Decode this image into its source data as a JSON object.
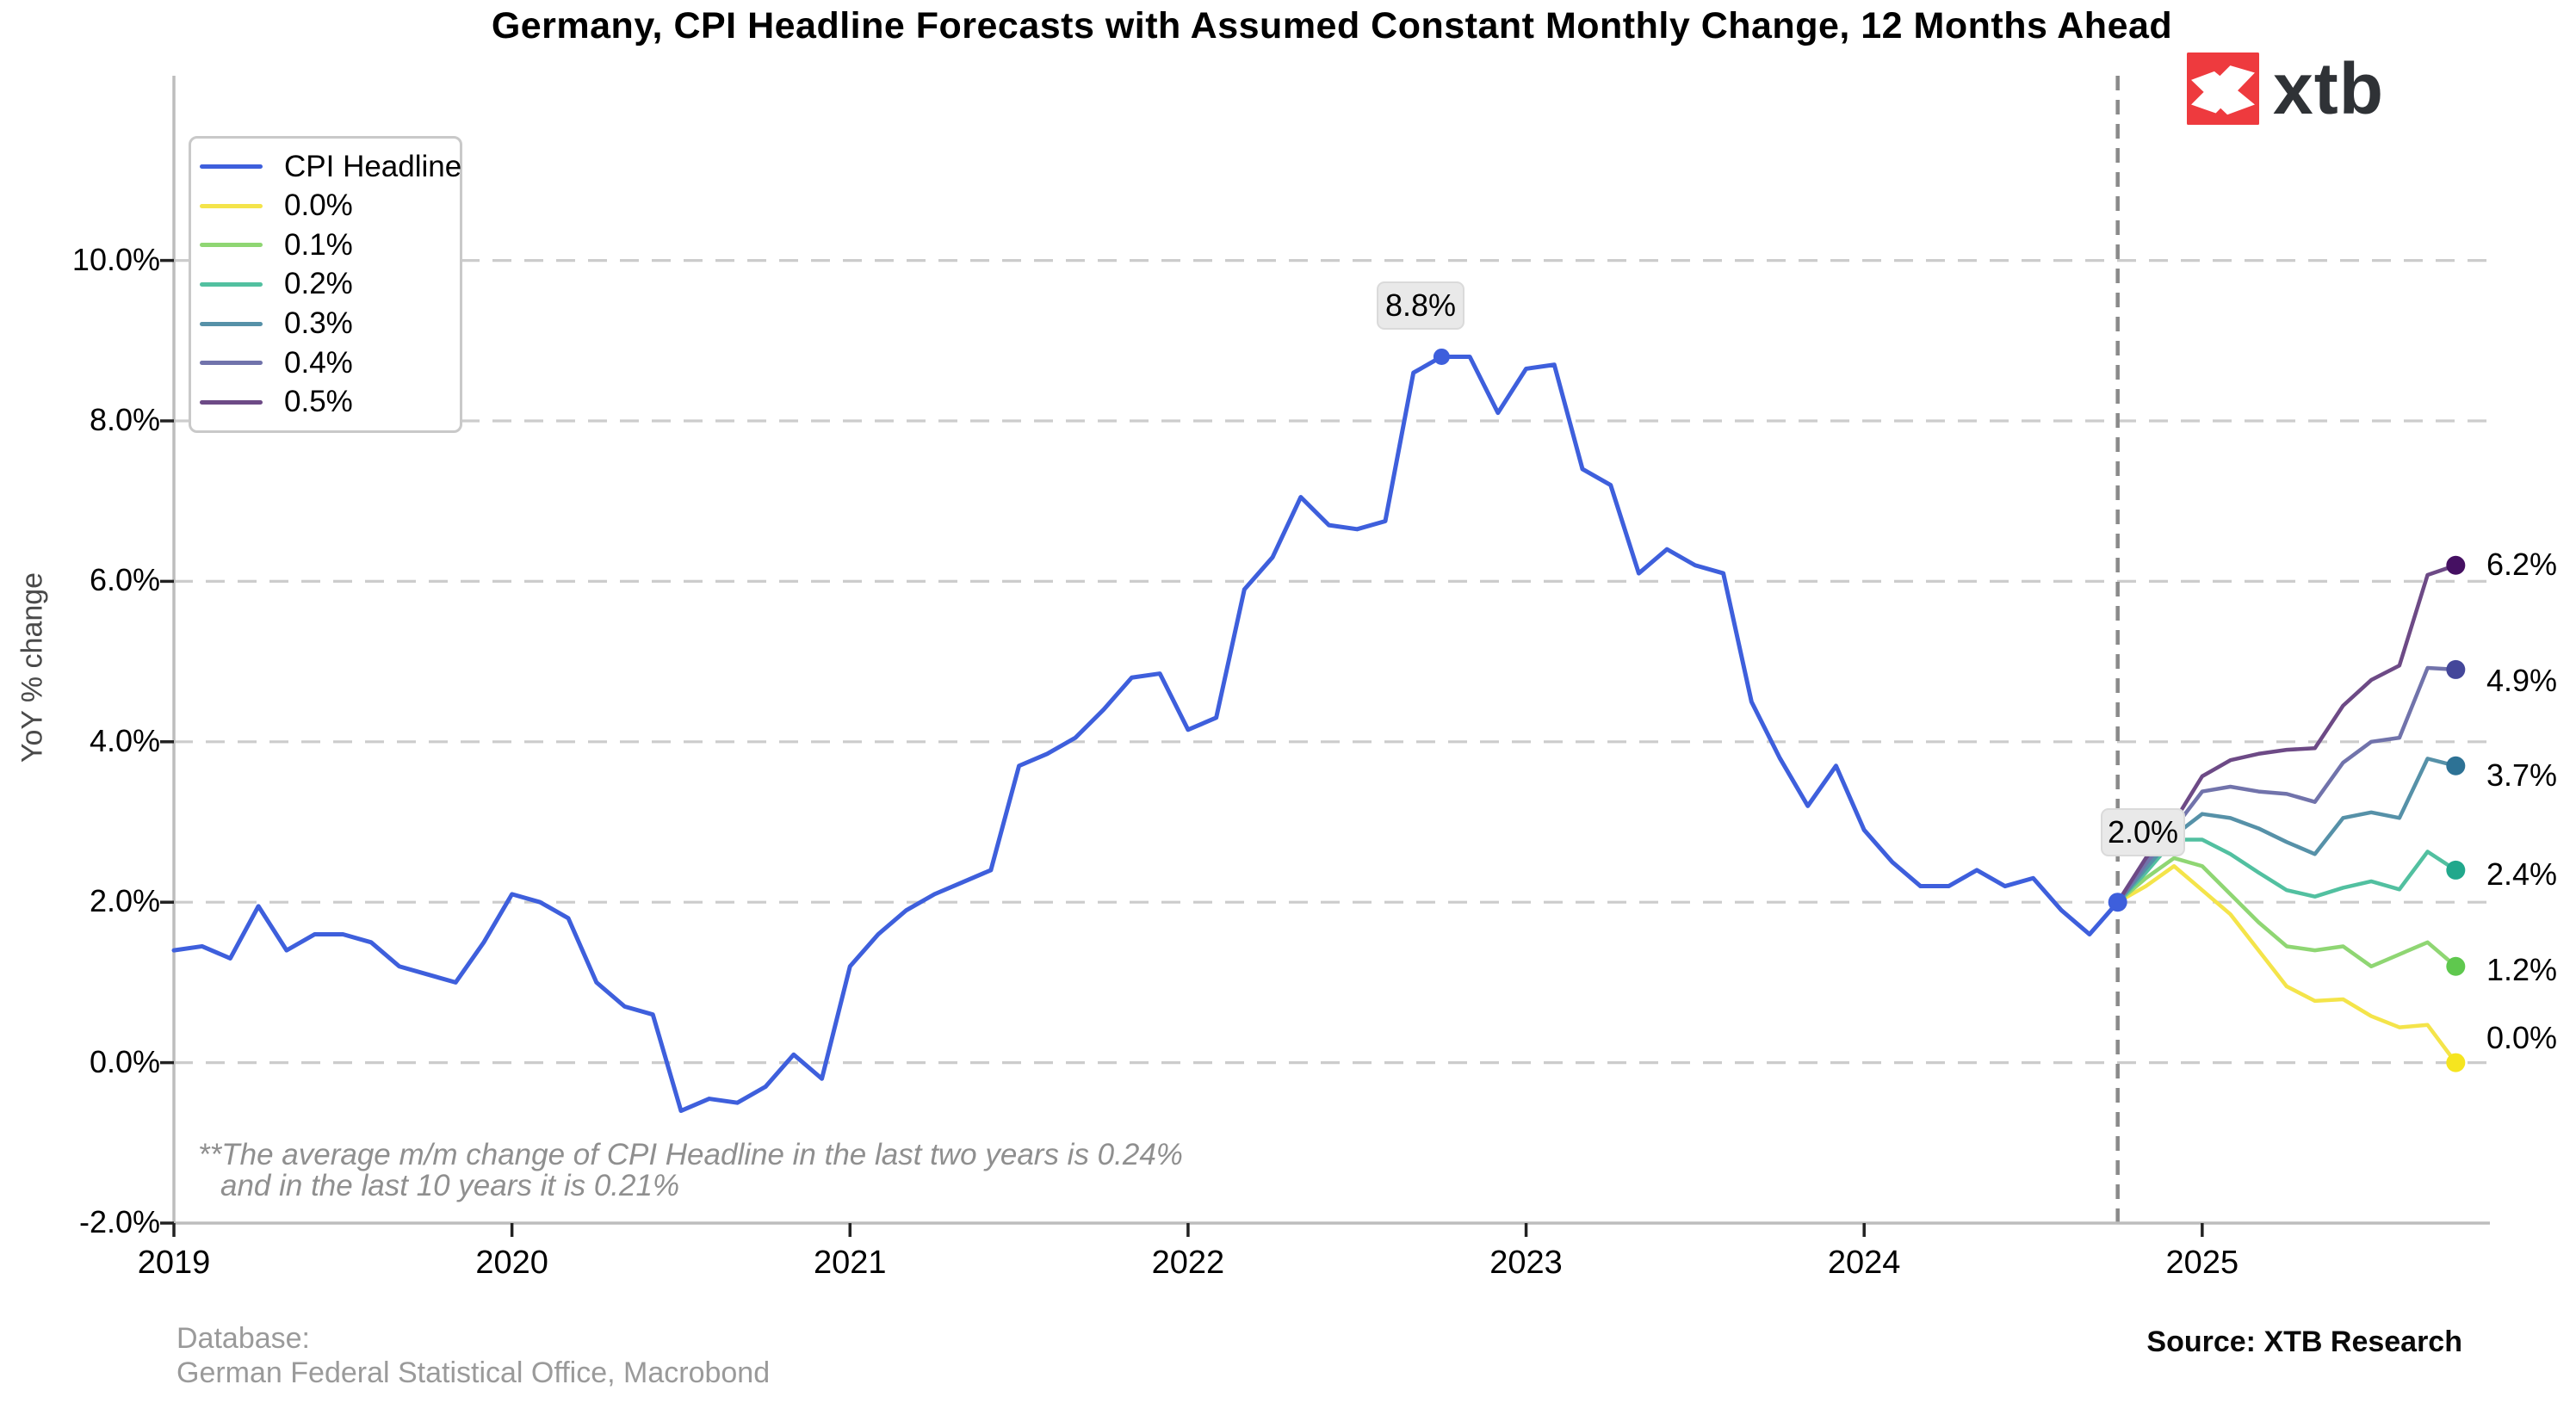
{
  "title": "Germany, CPI Headline Forecasts with Assumed Constant Monthly Change, 12 Months Ahead",
  "logo": {
    "brand": "xtb",
    "mark_color": "#ee3a3e",
    "text_color": "#2f3236"
  },
  "y_axis": {
    "label": "YoY % change",
    "tick_labels": [
      "10.0%",
      "8.0%",
      "6.0%",
      "4.0%",
      "2.0%",
      "0.0%",
      "-2.0%"
    ],
    "tick_values": [
      10,
      8,
      6,
      4,
      2,
      0,
      -2
    ]
  },
  "x_axis": {
    "tick_labels": [
      "2019",
      "2020",
      "2021",
      "2022",
      "2023",
      "2024",
      "2025"
    ]
  },
  "legend": {
    "items": [
      {
        "label": "CPI Headline",
        "color": "#3e5fdc"
      },
      {
        "label": "0.0%",
        "color": "#f4e44a"
      },
      {
        "label": "0.1%",
        "color": "#8fd673"
      },
      {
        "label": "0.2%",
        "color": "#52c0a0"
      },
      {
        "label": "0.3%",
        "color": "#5691a8"
      },
      {
        "label": "0.4%",
        "color": "#7173ab"
      },
      {
        "label": "0.5%",
        "color": "#6d4a86"
      }
    ]
  },
  "annotations": {
    "peak_label": "8.8%",
    "forecast_start_label": "2.0%"
  },
  "footnote": {
    "line1": "**The average m/m change of CPI Headline in the last two years is 0.24%",
    "line2": "and in the last 10 years it is 0.21%"
  },
  "credits": {
    "database_label": "Database:",
    "database_value": "German Federal Statistical Office, Macrobond",
    "source": "Source: XTB Research"
  },
  "chart_data": {
    "type": "line",
    "title": "Germany, CPI Headline Forecasts with Assumed Constant Monthly Change, 12 Months Ahead",
    "ylabel": "YoY % change",
    "ylim": [
      -2,
      11.6
    ],
    "grid_values": [
      10,
      8,
      6,
      4,
      2,
      0
    ],
    "grid_on": true,
    "legend_position": "upper left",
    "x_start_year": 2019,
    "points_per_year": 12,
    "forecast_months_ahead": 12,
    "actual": {
      "name": "CPI Headline",
      "color": "#3e5fdc",
      "monthly_yoy_pct": [
        1.4,
        1.45,
        1.3,
        1.95,
        1.4,
        1.6,
        1.6,
        1.5,
        1.2,
        1.1,
        1.0,
        1.5,
        2.1,
        2.0,
        1.8,
        1.0,
        0.7,
        0.6,
        -0.6,
        -0.45,
        -0.5,
        -0.3,
        0.1,
        -0.2,
        1.2,
        1.6,
        1.9,
        2.1,
        2.25,
        2.4,
        3.7,
        3.85,
        4.05,
        4.4,
        4.8,
        4.85,
        4.15,
        4.3,
        5.9,
        6.3,
        7.05,
        6.7,
        6.65,
        6.75,
        8.6,
        8.8,
        8.8,
        8.1,
        8.65,
        8.7,
        7.4,
        7.2,
        6.1,
        6.4,
        6.2,
        6.1,
        4.5,
        3.8,
        3.2,
        3.7,
        2.9,
        2.5,
        2.2,
        2.2,
        2.4,
        2.2,
        2.3,
        1.9,
        1.6,
        2.0
      ],
      "peak_annotation_value": 8.8,
      "last_value_annotation": 2.0
    },
    "scenarios": [
      {
        "label": "0.0%",
        "line_color": "#f4e44a",
        "dot_color": "#f6e51f",
        "end_label": "0.0%",
        "monthly_yoy_pct": [
          2.0,
          2.2,
          2.45,
          2.15,
          1.85,
          1.4,
          0.95,
          0.77,
          0.79,
          0.58,
          0.44,
          0.47,
          0.0
        ]
      },
      {
        "label": "0.1%",
        "line_color": "#8fd673",
        "dot_color": "#5fc84e",
        "end_label": "1.2%",
        "monthly_yoy_pct": [
          2.0,
          2.3,
          2.55,
          2.45,
          2.1,
          1.75,
          1.45,
          1.4,
          1.45,
          1.2,
          1.35,
          1.5,
          1.2
        ]
      },
      {
        "label": "0.2%",
        "line_color": "#52c0a0",
        "dot_color": "#21a88c",
        "end_label": "2.4%",
        "monthly_yoy_pct": [
          2.0,
          2.37,
          2.78,
          2.78,
          2.6,
          2.37,
          2.15,
          2.07,
          2.18,
          2.26,
          2.16,
          2.63,
          2.4
        ]
      },
      {
        "label": "0.3%",
        "line_color": "#5691a8",
        "dot_color": "#2d7295",
        "end_label": "3.7%",
        "monthly_yoy_pct": [
          2.0,
          2.42,
          2.83,
          3.1,
          3.05,
          2.92,
          2.75,
          2.6,
          3.05,
          3.12,
          3.05,
          3.79,
          3.7
        ]
      },
      {
        "label": "0.4%",
        "line_color": "#7173ab",
        "dot_color": "#44479a",
        "end_label": "4.9%",
        "monthly_yoy_pct": [
          2.0,
          2.48,
          2.92,
          3.38,
          3.44,
          3.38,
          3.35,
          3.25,
          3.74,
          4.0,
          4.05,
          4.92,
          4.9
        ]
      },
      {
        "label": "0.5%",
        "line_color": "#6d4a86",
        "dot_color": "#451062",
        "end_label": "6.2%",
        "monthly_yoy_pct": [
          2.0,
          2.55,
          3.0,
          3.57,
          3.77,
          3.85,
          3.9,
          3.92,
          4.45,
          4.77,
          4.95,
          6.08,
          6.2
        ]
      }
    ]
  }
}
